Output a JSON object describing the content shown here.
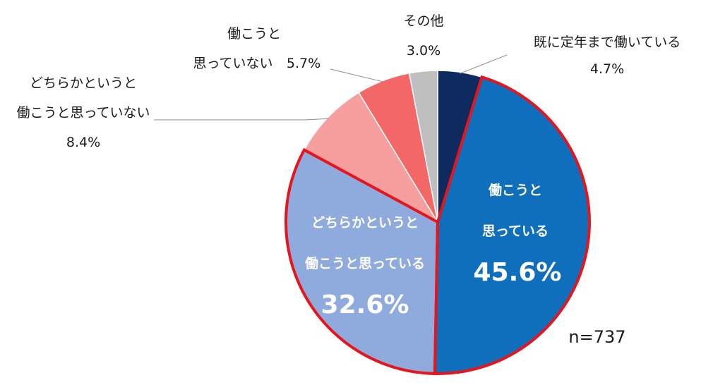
{
  "chart_data": {
    "type": "pie",
    "start_angle_deg": 0,
    "direction": "clockwise",
    "slices": [
      {
        "label": [
          "既に定年まで働いている"
        ],
        "value_text": "4.7%",
        "value": 4.7,
        "color": "#0e2a5e",
        "highlight": false
      },
      {
        "label": [
          "働こうと",
          "思っている"
        ],
        "value_text": "45.6%",
        "value": 45.6,
        "color": "#0f6fbd",
        "highlight": true
      },
      {
        "label": [
          "どちらかというと",
          "働こうと思っている"
        ],
        "value_text": "32.6%",
        "value": 32.6,
        "color": "#8faadc",
        "highlight": true
      },
      {
        "label": [
          "どちらかというと",
          "働こうと思っていない"
        ],
        "value_text": "8.4%",
        "value": 8.4,
        "color": "#f79e9e",
        "highlight": false
      },
      {
        "label": [
          "働こうと",
          "思っていない"
        ],
        "value_text": "5.7%",
        "value": 5.7,
        "color": "#f46767",
        "highlight": false
      },
      {
        "label": [
          "その他"
        ],
        "value_text": "3.0%",
        "value": 3.0,
        "color": "#bfbfbf",
        "highlight": false
      }
    ],
    "highlight_color": "#e8141c",
    "note": "n=737"
  }
}
